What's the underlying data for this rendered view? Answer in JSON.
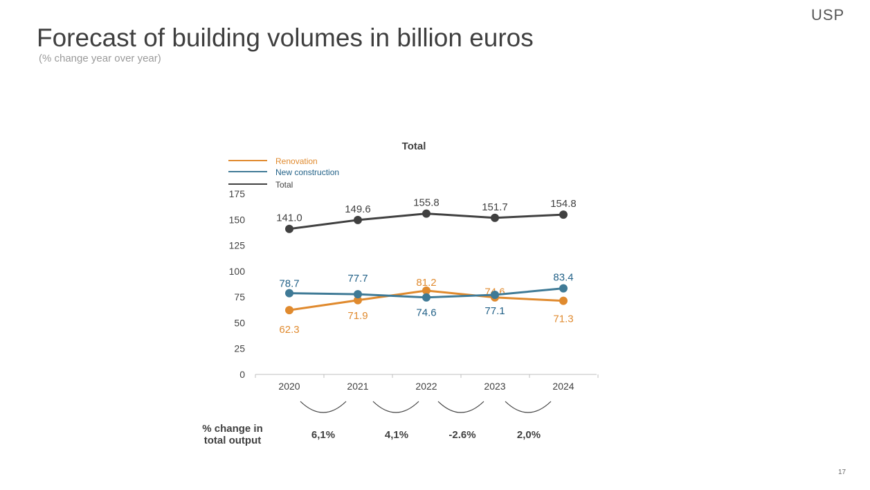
{
  "slide": {
    "title": "Forecast of building volumes in billion euros",
    "subtitle": "(% change year over year)",
    "logo": "USP",
    "page_number": "17"
  },
  "colors": {
    "renovation": "#e08a2e",
    "new_construction": "#3f7a96",
    "total": "#404040",
    "legend_new_construction_text": "#1f5f86",
    "axis": "#bfbfbf",
    "text": "#3f3f3f"
  },
  "chart_data": {
    "type": "line",
    "title": "Total",
    "categories": [
      "2020",
      "2021",
      "2022",
      "2023",
      "2024"
    ],
    "ylim": [
      0,
      175
    ],
    "yticks": [
      0,
      25,
      50,
      75,
      100,
      125,
      150,
      175
    ],
    "grid": false,
    "legend_position": "top-left",
    "series": [
      {
        "name": "Renovation",
        "key": "renovation",
        "values": [
          62.3,
          71.9,
          81.2,
          74.6,
          71.3
        ],
        "labels": [
          "62.3",
          "71.9",
          "81.2",
          "74.6",
          "71.3"
        ]
      },
      {
        "name": "New construction",
        "key": "new_construction",
        "values": [
          78.7,
          77.7,
          74.6,
          77.1,
          83.4
        ],
        "labels": [
          "78.7",
          "77.7",
          "74.6",
          "77.1",
          "83.4"
        ]
      },
      {
        "name": "Total",
        "key": "total",
        "values": [
          141.0,
          149.6,
          155.8,
          151.7,
          154.8
        ],
        "labels": [
          "141.0",
          "149.6",
          "155.8",
          "151.7",
          "154.8"
        ]
      }
    ]
  },
  "change_row": {
    "caption_line1": "% change in",
    "caption_line2": "total output",
    "values": [
      "6,1%",
      "4,1%",
      "-2.6%",
      "2,0%"
    ]
  }
}
